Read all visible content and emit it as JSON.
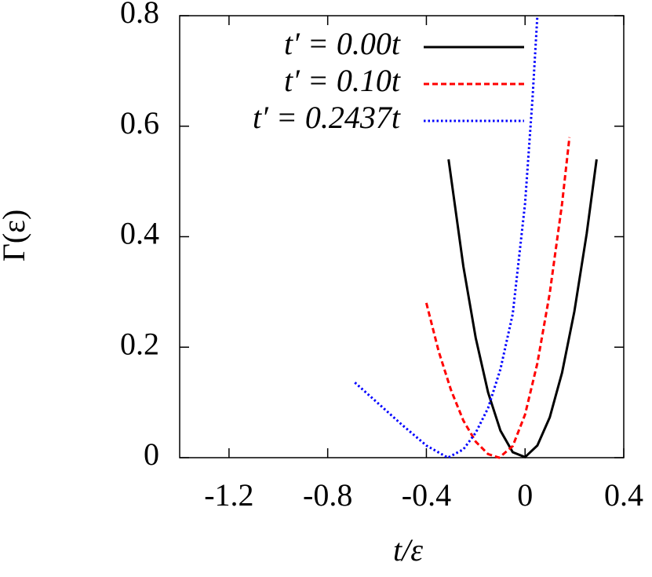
{
  "chart_data": {
    "type": "line",
    "xlabel": "t/ε",
    "ylabel": "Γ(ε)",
    "xlim": [
      -1.4,
      0.4
    ],
    "ylim": [
      0,
      0.8
    ],
    "xticks": [
      -1.2,
      -0.8,
      -0.4,
      0,
      0.4
    ],
    "yticks": [
      0,
      0.2,
      0.4,
      0.6,
      0.8
    ],
    "legend": "upper-right",
    "series": [
      {
        "name": "t′ = 0.00t",
        "color": "#000000",
        "dash": "solid",
        "x": [
          -0.31,
          -0.25,
          -0.2,
          -0.15,
          -0.1,
          -0.05,
          0,
          0.05,
          0.1,
          0.15,
          0.2,
          0.25,
          0.29
        ],
        "values": [
          0.54,
          0.346,
          0.217,
          0.118,
          0.049,
          0.01,
          0.001,
          0.022,
          0.073,
          0.154,
          0.265,
          0.406,
          0.54
        ]
      },
      {
        "name": "t′ = 0.10t",
        "color": "#ff0000",
        "dash": "dashed",
        "x": [
          -0.4,
          -0.35,
          -0.3,
          -0.25,
          -0.2,
          -0.15,
          -0.105,
          -0.05,
          0,
          0.05,
          0.1,
          0.15,
          0.18
        ],
        "values": [
          0.28,
          0.192,
          0.122,
          0.067,
          0.029,
          0.0065,
          0,
          0.021,
          0.078,
          0.171,
          0.298,
          0.46,
          0.58
        ]
      },
      {
        "name": "t′ = 0.2437t",
        "color": "#0000ff",
        "dash": "dotted",
        "x": [
          -0.69,
          -0.6,
          -0.5,
          -0.4,
          -0.313,
          -0.25,
          -0.2,
          -0.15,
          -0.1,
          -0.05,
          0,
          0.03,
          0.05
        ],
        "values": [
          0.136,
          0.1,
          0.06,
          0.022,
          0,
          0.015,
          0.045,
          0.09,
          0.16,
          0.26,
          0.46,
          0.65,
          0.8
        ]
      }
    ]
  }
}
